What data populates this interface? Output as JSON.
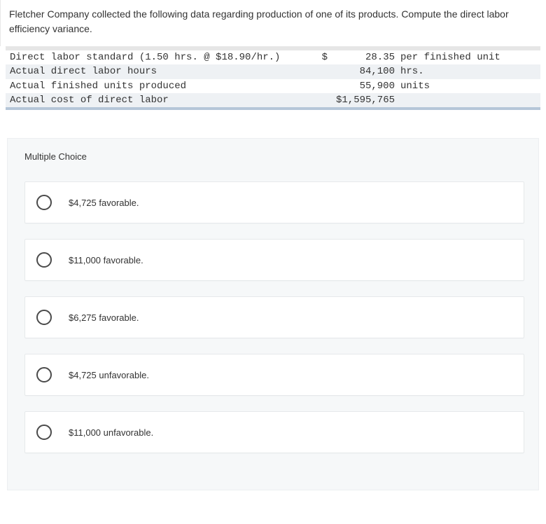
{
  "question": {
    "text": "Fletcher Company collected the following data regarding production of one of its products. Compute the direct labor efficiency variance."
  },
  "table": {
    "rows": [
      {
        "shade": "light",
        "label": "Direct labor standard (1.50 hrs. @ $18.90/hr.)",
        "sym": "$",
        "num": "28.35",
        "unit": "per finished unit"
      },
      {
        "shade": "shade",
        "label": "Actual direct labor hours",
        "sym": "",
        "num": "84,100",
        "unit": "hrs."
      },
      {
        "shade": "light",
        "label": "Actual finished units produced",
        "sym": "",
        "num": "55,900",
        "unit": "units"
      },
      {
        "shade": "shade",
        "label": "Actual cost of direct labor",
        "sym": "",
        "num": "$1,595,765",
        "unit": ""
      }
    ]
  },
  "mc": {
    "title": "Multiple Choice",
    "options": [
      {
        "label": "$4,725 favorable."
      },
      {
        "label": "$11,000 favorable."
      },
      {
        "label": "$6,275 favorable."
      },
      {
        "label": "$4,725 unfavorable."
      },
      {
        "label": "$11,000 unfavorable."
      }
    ]
  }
}
